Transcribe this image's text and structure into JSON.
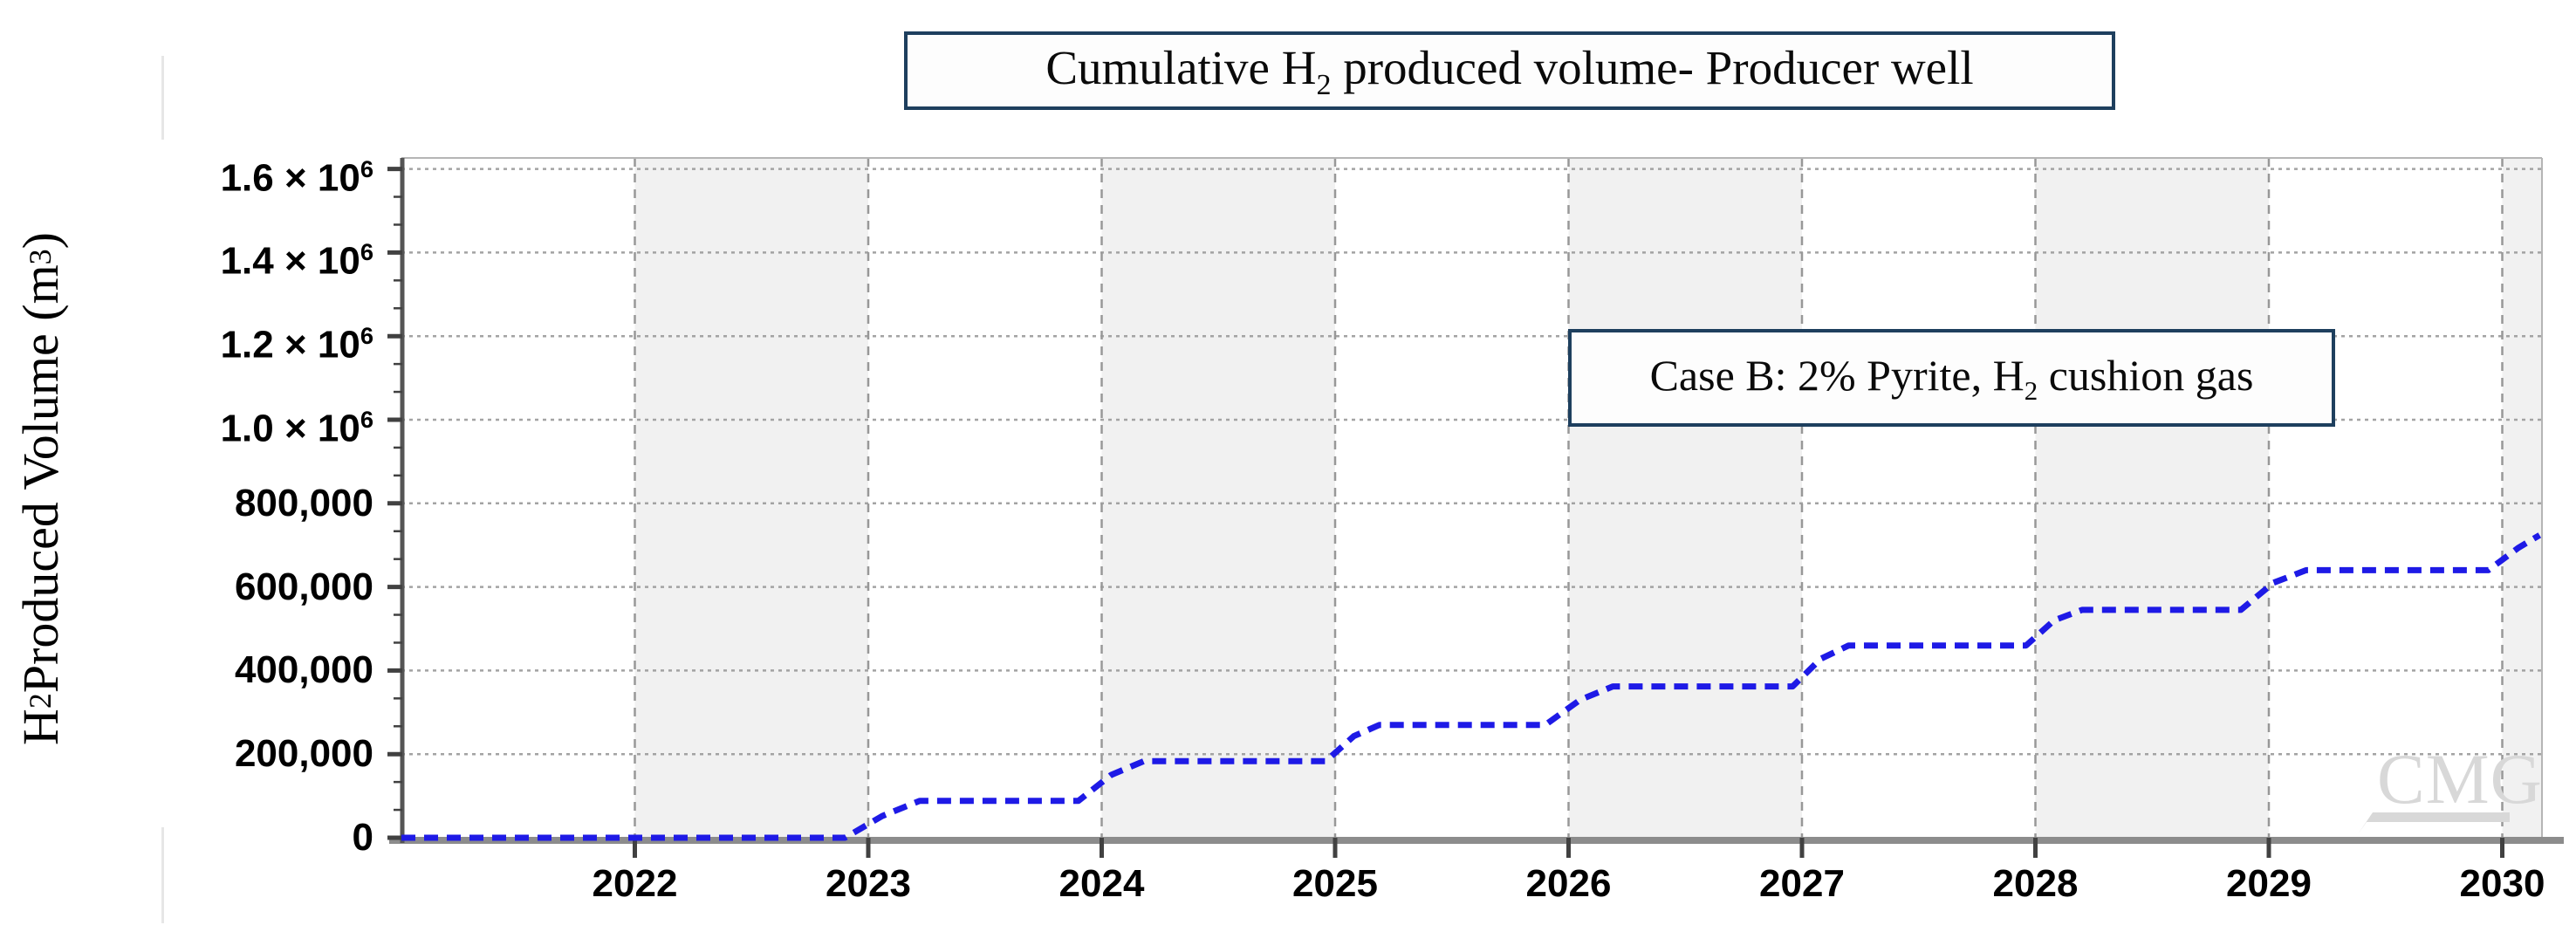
{
  "figure": {
    "title_prefix": "Cumulative H",
    "title_sub": "2",
    "title_suffix": " produced volume- Producer well",
    "annotation_prefix": "Case B: 2% Pyrite, H",
    "annotation_sub": "2",
    "annotation_suffix": " cushion gas",
    "watermark_text": "CMG"
  },
  "y_axis": {
    "label_prefix": "H",
    "label_sub": "2",
    "label_mid": " Produced Volume (m",
    "label_sup": "3",
    "label_close": ")"
  },
  "colors": {
    "line_blue": "#1e1ae6",
    "box_border_navy": "#1e3f5e",
    "band_gray": "#f1f1f1",
    "h_grid": "#a3a3a3",
    "v_grid": "#989898",
    "axis_bar": "#8c8c8c",
    "spine": "#555555",
    "tick": "#414141",
    "plot_border": "#b5b5b5",
    "watermark_gray": "#d8d8d8"
  },
  "chart_data": {
    "type": "line",
    "title": "Cumulative H2 produced volume- Producer well",
    "annotation": "Case B: 2% Pyrite, H2 cushion gas",
    "xlabel": "",
    "ylabel": "H2 Produced Volume (m3)",
    "xlim": [
      2021,
      2030.17
    ],
    "ylim": [
      0,
      1630000
    ],
    "grid": "horizontal dotted, vertical dashed per year",
    "legend_position": "none",
    "x_ticks": [
      {
        "value": 2022,
        "label": "2022"
      },
      {
        "value": 2023,
        "label": "2023"
      },
      {
        "value": 2024,
        "label": "2024"
      },
      {
        "value": 2025,
        "label": "2025"
      },
      {
        "value": 2026,
        "label": "2026"
      },
      {
        "value": 2027,
        "label": "2027"
      },
      {
        "value": 2028,
        "label": "2028"
      },
      {
        "value": 2029,
        "label": "2029"
      },
      {
        "value": 2030,
        "label": "2030"
      }
    ],
    "y_ticks": [
      {
        "value": 0,
        "text": "0",
        "sup": ""
      },
      {
        "value": 200000,
        "text": "200,000",
        "sup": ""
      },
      {
        "value": 400000,
        "text": "400,000",
        "sup": ""
      },
      {
        "value": 600000,
        "text": "600,000",
        "sup": ""
      },
      {
        "value": 800000,
        "text": "800,000",
        "sup": ""
      },
      {
        "value": 1000000,
        "text": "1.0 × 10",
        "sup": "6"
      },
      {
        "value": 1200000,
        "text": "1.2 × 10",
        "sup": "6"
      },
      {
        "value": 1400000,
        "text": "1.4 × 10",
        "sup": "6"
      },
      {
        "value": 1600000,
        "text": "1.6 × 10",
        "sup": "6"
      }
    ],
    "y_minor_ticks_per_interval": 2,
    "shaded_year_bands": [
      [
        2022,
        2023
      ],
      [
        2024,
        2025
      ],
      [
        2026,
        2027
      ],
      [
        2028,
        2029
      ],
      [
        2030,
        2030.17
      ]
    ],
    "series": [
      {
        "name": "Cumulative H2 produced volume - Producer well",
        "style": "dashed",
        "color": "#1e1ae6",
        "points": [
          [
            2021.0,
            0
          ],
          [
            2022.9,
            0
          ],
          [
            2023.06,
            52000
          ],
          [
            2023.22,
            88000
          ],
          [
            2023.9,
            88000
          ],
          [
            2024.04,
            150000
          ],
          [
            2024.18,
            183000
          ],
          [
            2024.96,
            183000
          ],
          [
            2025.08,
            243000
          ],
          [
            2025.19,
            270000
          ],
          [
            2025.9,
            270000
          ],
          [
            2026.05,
            330000
          ],
          [
            2026.19,
            362000
          ],
          [
            2026.96,
            362000
          ],
          [
            2027.08,
            428000
          ],
          [
            2027.2,
            460000
          ],
          [
            2027.96,
            460000
          ],
          [
            2028.08,
            520000
          ],
          [
            2028.2,
            545000
          ],
          [
            2028.88,
            545000
          ],
          [
            2029.02,
            610000
          ],
          [
            2029.16,
            640000
          ],
          [
            2029.94,
            640000
          ],
          [
            2030.07,
            694000
          ],
          [
            2030.16,
            724000
          ]
        ]
      }
    ]
  }
}
